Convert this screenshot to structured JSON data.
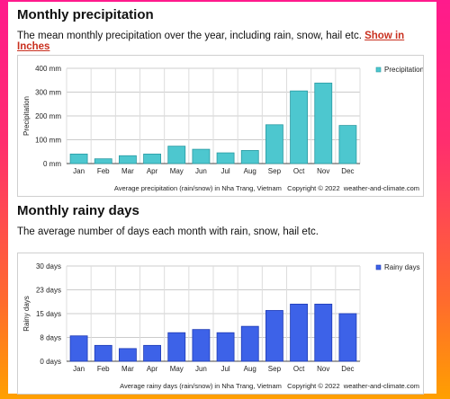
{
  "sections": {
    "precip": {
      "heading": "Monthly precipitation",
      "description": "The mean monthly precipitation over the year, including rain, snow, hail etc.",
      "link_label": "Show in Inches"
    },
    "rainy": {
      "heading": "Monthly rainy days",
      "description": "The average number of days each month with rain, snow, hail etc."
    }
  },
  "chart_data": [
    {
      "type": "bar",
      "categories": [
        "Jan",
        "Feb",
        "Mar",
        "Apr",
        "May",
        "Jun",
        "Jul",
        "Aug",
        "Sep",
        "Oct",
        "Nov",
        "Dec"
      ],
      "series": [
        {
          "name": "Precipitation",
          "values": [
            40,
            20,
            33,
            40,
            73,
            60,
            45,
            55,
            163,
            305,
            338,
            160
          ]
        }
      ],
      "xlabel": "",
      "ylabel": "Precipitation",
      "ylim": [
        0,
        400
      ],
      "yticks": [
        "0 mm",
        "100 mm",
        "200 mm",
        "300 mm",
        "400 mm"
      ],
      "ytick_values": [
        0,
        100,
        200,
        300,
        400
      ],
      "caption": "Average precipitation (rain/snow) in Nha Trang, Vietnam   Copyright © 2022  weather-and-climate.com",
      "color": "#4dc7cf",
      "stroke": "#2a9aa2",
      "grid": true,
      "legend_position": "top-right"
    },
    {
      "type": "bar",
      "categories": [
        "Jan",
        "Feb",
        "Mar",
        "Apr",
        "May",
        "Jun",
        "Jul",
        "Aug",
        "Sep",
        "Oct",
        "Nov",
        "Dec"
      ],
      "series": [
        {
          "name": "Rainy days",
          "values": [
            8,
            5,
            4,
            5,
            9,
            10,
            9,
            11,
            16,
            18,
            18,
            15
          ]
        }
      ],
      "xlabel": "",
      "ylabel": "Rainy days",
      "ylim": [
        0,
        30
      ],
      "yticks": [
        "0 days",
        "8 days",
        "15 days",
        "23 days",
        "30 days"
      ],
      "ytick_values": [
        0,
        7.5,
        15,
        22.5,
        30
      ],
      "caption": "Average rainy days (rain/snow) in Nha Trang, Vietnam   Copyright © 2022  weather-and-climate.com",
      "color": "#3d62e8",
      "stroke": "#1f3bb5",
      "grid": true,
      "legend_position": "top-right"
    }
  ]
}
